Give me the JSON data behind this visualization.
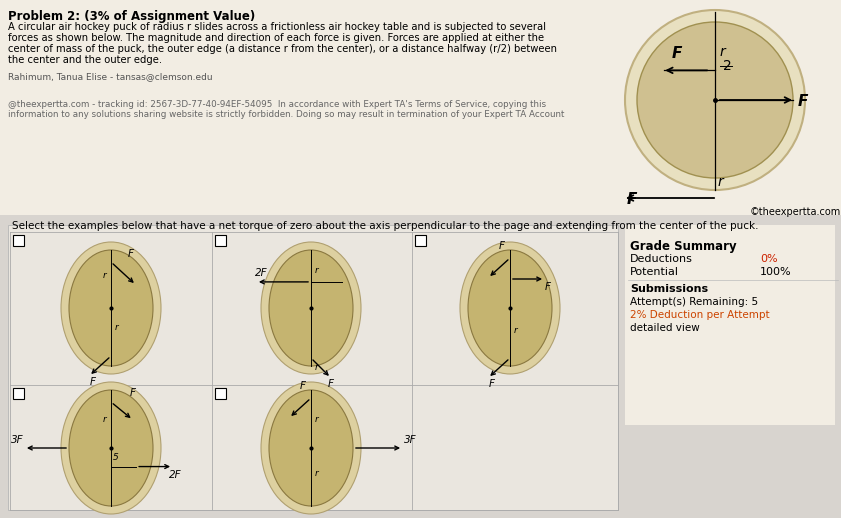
{
  "title_text": "Problem 2: (3% of Assignment Value)",
  "problem_text1": "A circular air hockey puck of radius r slides across a frictionless air hockey table and is subjected to several",
  "problem_text2": "forces as shown below. The magnitude and direction of each force is given. Forces are applied at either the",
  "problem_text3": "center of mass of the puck, the outer edge (a distance r from the center), or a distance halfway (r/2) between",
  "problem_text4": "the center and the outer edge.",
  "watermark1": "Rahimum, Tanua Elise - tansas@clemson.edu",
  "watermark2": "@theexpertta.com - tracking id: 2567-3D-77-40-94EF-54095  In accordance with Expert TA's Terms of Service, copying this",
  "watermark3": "information to any solutions sharing website is strictly forbidden. Doing so may result in termination of your Expert TA Account",
  "copyright": "©theexpertta.com",
  "select_text": "Select the examples below that have a net torque of zero about the axis perpendicular to the page and extending from the center of the puck.",
  "grade_title": "Grade Summary",
  "deductions_label": "Deductions",
  "deductions_value": "0%",
  "potential_label": "Potential",
  "potential_value": "100%",
  "submissions_label": "Submissions",
  "attempts_label": "Attempt(s) Remaining: 5",
  "deduction_per": "2% Deduction per Attempt",
  "detailed_view": "detailed view",
  "top_bg": "#f2ede3",
  "bot_bg": "#d8d4cf",
  "inner_bg": "#eae6df",
  "puck_face": "#c5b470",
  "puck_ring": "#ddd0a0",
  "puck_edge": "#8a7840"
}
